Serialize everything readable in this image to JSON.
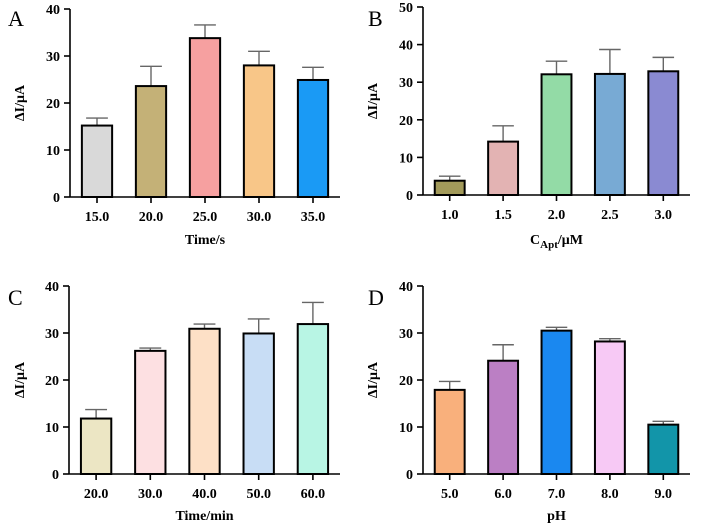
{
  "chart_data": [
    {
      "type": "bar",
      "panel_label": "A",
      "title": "",
      "xlabel": "Time/s",
      "ylabel": "ΔI/μA",
      "ylim": [
        0,
        40
      ],
      "yticks": [
        0,
        10,
        20,
        30,
        40
      ],
      "categories": [
        "15.0",
        "20.0",
        "25.0",
        "30.0",
        "35.0"
      ],
      "values": [
        15.2,
        23.6,
        33.8,
        28.0,
        24.9
      ],
      "errors": [
        1.6,
        4.2,
        2.8,
        3.0,
        2.7
      ],
      "colors": [
        "#d9d9d9",
        "#c4b177",
        "#f6a0a0",
        "#f8c688",
        "#1a9af5"
      ],
      "grid": false
    },
    {
      "type": "bar",
      "panel_label": "B",
      "title": "",
      "xlabel": "C",
      "xlabel_sub": "Apt",
      "xlabel_suffix": "/μM",
      "ylabel": "ΔI/μA",
      "ylim": [
        0,
        50
      ],
      "yticks": [
        0,
        10,
        20,
        30,
        40,
        50
      ],
      "categories": [
        "1.0",
        "1.5",
        "2.0",
        "2.5",
        "3.0"
      ],
      "values": [
        3.8,
        14.2,
        32.1,
        32.2,
        32.9
      ],
      "errors": [
        1.2,
        4.2,
        3.5,
        6.5,
        3.7
      ],
      "colors": [
        "#a29a5a",
        "#e3b3b3",
        "#93dba6",
        "#78aad4",
        "#8a8ad2"
      ],
      "grid": false
    },
    {
      "type": "bar",
      "panel_label": "C",
      "title": "",
      "xlabel": "Time/min",
      "ylabel": "ΔI/μA",
      "ylim": [
        0,
        40
      ],
      "yticks": [
        0,
        10,
        20,
        30,
        40
      ],
      "categories": [
        "20.0",
        "30.0",
        "40.0",
        "50.0",
        "60.0"
      ],
      "values": [
        11.8,
        26.2,
        30.9,
        29.9,
        31.9
      ],
      "errors": [
        1.9,
        0.6,
        1.0,
        3.1,
        4.6
      ],
      "colors": [
        "#ece6c4",
        "#fde0e2",
        "#fde0c6",
        "#c8ddf5",
        "#b8f5e4"
      ],
      "grid": false
    },
    {
      "type": "bar",
      "panel_label": "D",
      "title": "",
      "xlabel": "pH",
      "ylabel": "ΔI/μA",
      "ylim": [
        0,
        40
      ],
      "yticks": [
        0,
        10,
        20,
        30,
        40
      ],
      "categories": [
        "5.0",
        "6.0",
        "7.0",
        "8.0",
        "9.0"
      ],
      "values": [
        17.9,
        24.1,
        30.5,
        28.2,
        10.5
      ],
      "errors": [
        1.8,
        3.4,
        0.7,
        0.6,
        0.7
      ],
      "colors": [
        "#f9b07c",
        "#bb7fc4",
        "#1a88f0",
        "#f7c9f5",
        "#1295a9"
      ],
      "grid": false
    }
  ]
}
